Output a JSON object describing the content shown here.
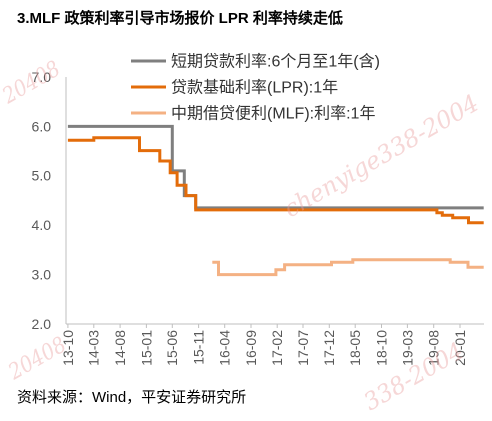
{
  "source": "资料来源：Wind，平安证券研究所",
  "watermark": [
    "20408",
    "chenyige338-2004",
    "20408",
    "338-2004"
  ],
  "colors": {
    "axis": "#bfbfbf",
    "tick_text": "#595959"
  },
  "chart_data": {
    "type": "line",
    "line_shape": "step",
    "title": "3.MLF 政策利率引导市场报价 LPR 利率持续走低",
    "xlim": [
      "2013-09-20",
      "2020-05-20"
    ],
    "ylim": [
      2,
      7
    ],
    "x_ticks": [
      "13-10",
      "14-03",
      "14-08",
      "15-01",
      "15-06",
      "15-11",
      "16-04",
      "16-09",
      "17-02",
      "17-07",
      "17-12",
      "18-05",
      "18-10",
      "19-03",
      "19-08",
      "20-01"
    ],
    "y_ticks": [
      "2.0",
      "3.0",
      "4.0",
      "5.0",
      "6.0",
      "7.0"
    ],
    "grid": false,
    "legend": "top",
    "series": [
      {
        "name": "短期贷款利率:6个月至1年(含)",
        "color": "#7f7f7f",
        "points": [
          [
            "2013-10-01",
            6.0
          ],
          [
            "2015-06-01",
            5.1
          ],
          [
            "2015-08-10",
            4.6
          ],
          [
            "2015-10-15",
            4.35
          ],
          [
            "2020-05-18",
            4.35
          ]
        ]
      },
      {
        "name": "贷款基础利率(LPR):1年",
        "color": "#e36c0a",
        "points": [
          [
            "2013-10-01",
            5.72
          ],
          [
            "2014-03-01",
            5.77
          ],
          [
            "2014-11-22",
            5.51
          ],
          [
            "2015-03-20",
            5.3
          ],
          [
            "2015-05-20",
            5.06
          ],
          [
            "2015-06-29",
            4.81
          ],
          [
            "2015-08-20",
            4.6
          ],
          [
            "2015-10-15",
            4.31
          ],
          [
            "2019-08-20",
            4.25
          ],
          [
            "2019-09-20",
            4.2
          ],
          [
            "2019-11-20",
            4.15
          ],
          [
            "2020-02-20",
            4.05
          ],
          [
            "2020-05-18",
            4.05
          ]
        ]
      },
      {
        "name": "中期借贷便利(MLF):利率:1年",
        "color": "#f4b183",
        "points": [
          [
            "2016-01-20",
            3.25
          ],
          [
            "2016-02-25",
            3.0
          ],
          [
            "2017-01-24",
            3.1
          ],
          [
            "2017-03-16",
            3.2
          ],
          [
            "2017-12-14",
            3.25
          ],
          [
            "2018-04-17",
            3.3
          ],
          [
            "2019-11-05",
            3.25
          ],
          [
            "2020-02-17",
            3.15
          ],
          [
            "2020-05-18",
            3.15
          ]
        ]
      }
    ]
  }
}
